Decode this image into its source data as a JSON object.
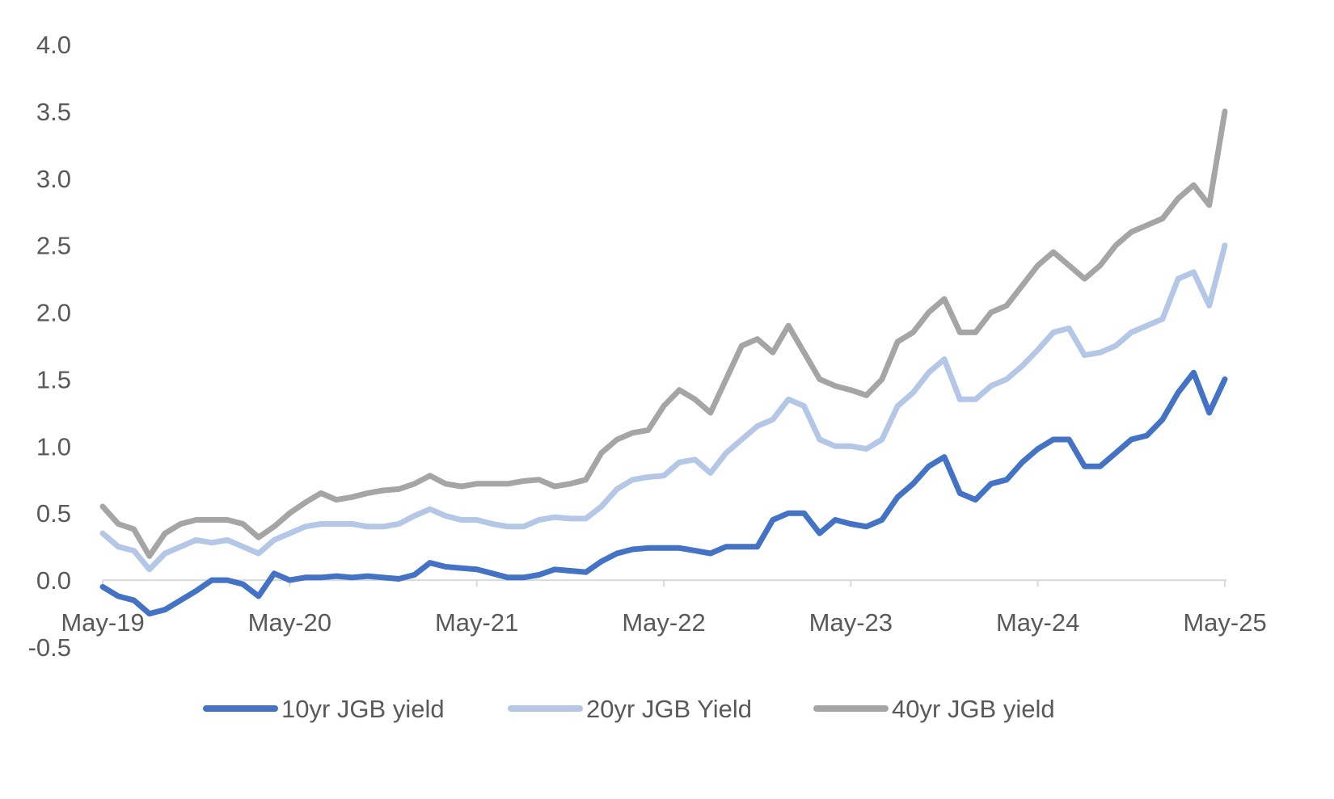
{
  "chart_data": {
    "type": "line",
    "title": "",
    "xlabel": "",
    "ylabel": "",
    "ylim": [
      -0.5,
      4.0
    ],
    "yticks": [
      "-0.5",
      "0.0",
      "0.5",
      "1.0",
      "1.5",
      "2.0",
      "2.5",
      "3.0",
      "3.5",
      "4.0"
    ],
    "xticks": [
      "May-19",
      "May-20",
      "May-21",
      "May-22",
      "May-23",
      "May-24",
      "May-25"
    ],
    "xrange": [
      "2019-05",
      "2025-05"
    ],
    "grid": false,
    "legend": "bottom",
    "x": [
      "2019-05",
      "2019-06",
      "2019-07",
      "2019-08",
      "2019-09",
      "2019-10",
      "2019-11",
      "2019-12",
      "2020-01",
      "2020-02",
      "2020-03",
      "2020-04",
      "2020-05",
      "2020-06",
      "2020-07",
      "2020-08",
      "2020-09",
      "2020-10",
      "2020-11",
      "2020-12",
      "2021-01",
      "2021-02",
      "2021-03",
      "2021-04",
      "2021-05",
      "2021-06",
      "2021-07",
      "2021-08",
      "2021-09",
      "2021-10",
      "2021-11",
      "2021-12",
      "2022-01",
      "2022-02",
      "2022-03",
      "2022-04",
      "2022-05",
      "2022-06",
      "2022-07",
      "2022-08",
      "2022-09",
      "2022-10",
      "2022-11",
      "2022-12",
      "2023-01",
      "2023-02",
      "2023-03",
      "2023-04",
      "2023-05",
      "2023-06",
      "2023-07",
      "2023-08",
      "2023-09",
      "2023-10",
      "2023-11",
      "2023-12",
      "2024-01",
      "2024-02",
      "2024-03",
      "2024-04",
      "2024-05",
      "2024-06",
      "2024-07",
      "2024-08",
      "2024-09",
      "2024-10",
      "2024-11",
      "2024-12",
      "2025-01",
      "2025-02",
      "2025-03",
      "2025-04",
      "2025-05"
    ],
    "series": [
      {
        "name": "10yr JGB yield",
        "color": "#4472C4",
        "values": [
          -0.05,
          -0.12,
          -0.15,
          -0.25,
          -0.22,
          -0.15,
          -0.08,
          0.0,
          0.0,
          -0.03,
          -0.12,
          0.05,
          0.0,
          0.02,
          0.02,
          0.03,
          0.02,
          0.03,
          0.02,
          0.01,
          0.04,
          0.13,
          0.1,
          0.09,
          0.08,
          0.05,
          0.02,
          0.02,
          0.04,
          0.08,
          0.07,
          0.06,
          0.14,
          0.2,
          0.23,
          0.24,
          0.24,
          0.24,
          0.22,
          0.2,
          0.25,
          0.25,
          0.25,
          0.45,
          0.5,
          0.5,
          0.35,
          0.45,
          0.42,
          0.4,
          0.45,
          0.62,
          0.72,
          0.85,
          0.92,
          0.65,
          0.6,
          0.72,
          0.75,
          0.88,
          0.98,
          1.05,
          1.05,
          0.85,
          0.85,
          0.95,
          1.05,
          1.08,
          1.2,
          1.4,
          1.55,
          1.25,
          1.5
        ]
      },
      {
        "name": "20yr JGB Yield",
        "color": "#B4C7E7",
        "values": [
          0.35,
          0.25,
          0.22,
          0.08,
          0.2,
          0.25,
          0.3,
          0.28,
          0.3,
          0.25,
          0.2,
          0.3,
          0.35,
          0.4,
          0.42,
          0.42,
          0.42,
          0.4,
          0.4,
          0.42,
          0.48,
          0.53,
          0.48,
          0.45,
          0.45,
          0.42,
          0.4,
          0.4,
          0.45,
          0.47,
          0.46,
          0.46,
          0.55,
          0.68,
          0.75,
          0.77,
          0.78,
          0.88,
          0.9,
          0.8,
          0.95,
          1.05,
          1.15,
          1.2,
          1.35,
          1.3,
          1.05,
          1.0,
          1.0,
          0.98,
          1.05,
          1.3,
          1.4,
          1.55,
          1.65,
          1.35,
          1.35,
          1.45,
          1.5,
          1.6,
          1.72,
          1.85,
          1.88,
          1.68,
          1.7,
          1.75,
          1.85,
          1.9,
          1.95,
          2.25,
          2.3,
          2.05,
          2.5
        ]
      },
      {
        "name": "40yr JGB yield",
        "color": "#A5A5A5",
        "values": [
          0.55,
          0.42,
          0.38,
          0.18,
          0.35,
          0.42,
          0.45,
          0.45,
          0.45,
          0.42,
          0.32,
          0.4,
          0.5,
          0.58,
          0.65,
          0.6,
          0.62,
          0.65,
          0.67,
          0.68,
          0.72,
          0.78,
          0.72,
          0.7,
          0.72,
          0.72,
          0.72,
          0.74,
          0.75,
          0.7,
          0.72,
          0.75,
          0.95,
          1.05,
          1.1,
          1.12,
          1.3,
          1.42,
          1.35,
          1.25,
          1.5,
          1.75,
          1.8,
          1.7,
          1.9,
          1.7,
          1.5,
          1.45,
          1.42,
          1.38,
          1.5,
          1.78,
          1.85,
          2.0,
          2.1,
          1.85,
          1.85,
          2.0,
          2.05,
          2.2,
          2.35,
          2.45,
          2.35,
          2.25,
          2.35,
          2.5,
          2.6,
          2.65,
          2.7,
          2.85,
          2.95,
          2.8,
          3.5
        ]
      }
    ]
  }
}
